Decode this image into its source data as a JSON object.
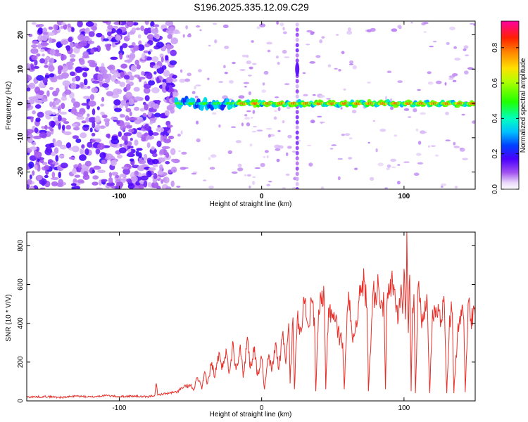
{
  "title": "S196.2025.335.12.09.C29",
  "chart_data": [
    {
      "type": "heatmap",
      "xlabel": "Height of straight line (km)",
      "ylabel": "Frequency (Hz)",
      "xlim": [
        -165,
        150
      ],
      "ylim": [
        -25,
        24
      ],
      "xticks": [
        -100,
        0,
        100
      ],
      "yticks": [
        -20,
        -10,
        0,
        10,
        20
      ],
      "colorbar": {
        "label": "Normalized spectral amplitude",
        "range": [
          0,
          0.95
        ],
        "ticks": [
          "0.0",
          "0.2",
          "0.4",
          "0.6",
          "0.8"
        ]
      },
      "features": [
        {
          "name": "noise-region",
          "x_range": [
            -165,
            -60
          ],
          "freq_range": [
            -25,
            24
          ],
          "amplitude": 0.1
        },
        {
          "name": "central-band",
          "x_range": [
            -60,
            150
          ],
          "freq_center": 0,
          "amplitude": 0.9
        },
        {
          "name": "spike-25km",
          "x": 25,
          "freq_range": [
            -25,
            24
          ],
          "amplitude": 0.2
        }
      ]
    },
    {
      "type": "line",
      "xlabel": "Height of straight line (km)",
      "ylabel": "SNR (10 * V/V)",
      "xlim": [
        -165,
        150
      ],
      "ylim": [
        0,
        870
      ],
      "xticks": [
        -100,
        0,
        100
      ],
      "yticks": [
        0,
        200,
        400,
        600,
        800
      ],
      "series": [
        {
          "name": "SNR",
          "color": "#e8302a",
          "x": [
            -165,
            -150,
            -140,
            -130,
            -120,
            -110,
            -100,
            -90,
            -80,
            -75,
            -74,
            -73,
            -70,
            -65,
            -60,
            -55,
            -50,
            -48,
            -45,
            -42,
            -40,
            -38,
            -35,
            -33,
            -30,
            -28,
            -25,
            -23,
            -20,
            -18,
            -15,
            -13,
            -10,
            -8,
            -5,
            -3,
            0,
            2,
            5,
            7,
            10,
            12,
            15,
            17,
            19,
            20,
            22,
            23,
            25,
            27,
            30,
            33,
            35,
            37,
            38,
            40,
            42,
            44,
            45,
            47,
            50,
            52,
            53,
            55,
            57,
            58,
            60,
            62,
            64,
            66,
            68,
            70,
            72,
            74,
            75,
            78,
            80,
            82,
            84,
            86,
            87,
            88,
            90,
            92,
            94,
            96,
            98,
            99,
            100,
            101,
            102,
            103,
            104,
            105,
            106,
            107,
            108,
            110,
            112,
            114,
            116,
            118,
            120,
            122,
            124,
            126,
            128,
            130,
            132,
            134,
            135,
            138,
            140,
            142,
            143,
            145,
            147,
            150
          ],
          "values": [
            20,
            22,
            18,
            25,
            20,
            28,
            22,
            25,
            20,
            30,
            90,
            30,
            35,
            40,
            45,
            70,
            80,
            55,
            120,
            60,
            150,
            90,
            200,
            120,
            250,
            160,
            270,
            140,
            300,
            160,
            290,
            120,
            330,
            170,
            280,
            130,
            220,
            60,
            240,
            150,
            300,
            160,
            360,
            190,
            400,
            90,
            430,
            60,
            420,
            380,
            500,
            380,
            520,
            430,
            50,
            470,
            500,
            520,
            60,
            480,
            450,
            420,
            380,
            320,
            300,
            60,
            450,
            520,
            300,
            400,
            500,
            560,
            620,
            480,
            50,
            540,
            560,
            600,
            520,
            480,
            60,
            500,
            560,
            600,
            500,
            420,
            600,
            450,
            680,
            420,
            870,
            350,
            650,
            50,
            480,
            550,
            40,
            600,
            430,
            460,
            550,
            40,
            470,
            430,
            500,
            420,
            540,
            40,
            440,
            450,
            40,
            400,
            470,
            420,
            45,
            500,
            420,
            440
          ]
        }
      ]
    }
  ]
}
